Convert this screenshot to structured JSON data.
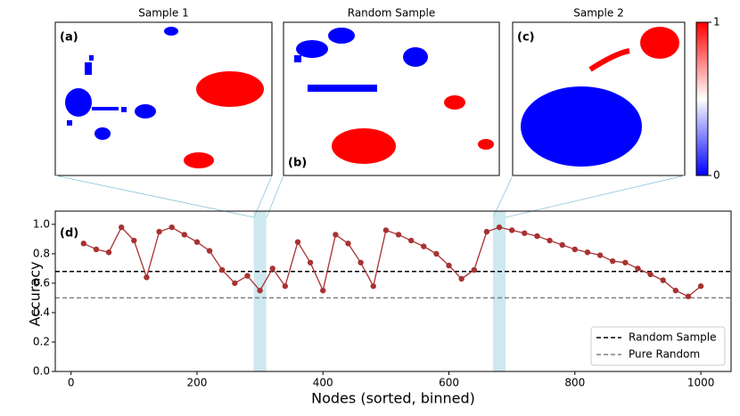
{
  "chart_data": {
    "type": "line",
    "panels": [
      {
        "title": "Sample 1",
        "label": "(a)"
      },
      {
        "title": "Random Sample",
        "label": "(b)"
      },
      {
        "title": "Sample 2",
        "label": "(c)"
      }
    ],
    "colorbar": {
      "ticks": [
        0,
        1
      ]
    },
    "panel_label": "(d)",
    "xlabel": "Nodes (sorted, binned)",
    "ylabel": "Accuracy",
    "x": [
      20,
      40,
      60,
      80,
      100,
      120,
      140,
      160,
      180,
      200,
      220,
      240,
      260,
      280,
      300,
      320,
      340,
      360,
      380,
      400,
      420,
      440,
      460,
      480,
      500,
      520,
      540,
      560,
      580,
      600,
      620,
      640,
      660,
      680,
      700,
      720,
      740,
      760,
      780,
      800,
      820,
      840,
      860,
      880,
      900,
      920,
      940,
      960,
      980,
      1000
    ],
    "values": [
      0.87,
      0.83,
      0.81,
      0.98,
      0.89,
      0.64,
      0.95,
      0.98,
      0.93,
      0.88,
      0.82,
      0.69,
      0.6,
      0.65,
      0.55,
      0.7,
      0.58,
      0.88,
      0.74,
      0.55,
      0.93,
      0.87,
      0.74,
      0.58,
      0.96,
      0.93,
      0.89,
      0.85,
      0.8,
      0.72,
      0.63,
      0.69,
      0.95,
      0.98,
      0.96,
      0.94,
      0.92,
      0.89,
      0.86,
      0.83,
      0.81,
      0.79,
      0.75,
      0.74,
      0.7,
      0.66,
      0.62,
      0.55,
      0.51,
      0.58
    ],
    "color": "#a83232",
    "hlines": [
      {
        "name": "Random Sample",
        "value": 0.68,
        "color": "#000000"
      },
      {
        "name": "Pure Random",
        "value": 0.5,
        "color": "#808080"
      }
    ],
    "spans": [
      [
        290,
        310
      ],
      [
        670,
        690
      ]
    ],
    "span_color": "#add8e6",
    "xlim": [
      -25,
      1048
    ],
    "ylim": [
      0,
      1.09
    ],
    "xticks": [
      0,
      200,
      400,
      600,
      800,
      1000
    ],
    "yticks": [
      {
        "value": 0,
        "label": "0.0"
      },
      {
        "value": 0.2,
        "label": "0.2"
      },
      {
        "value": 0.4,
        "label": "0.4"
      },
      {
        "value": 0.6,
        "label": "0.6"
      },
      {
        "value": 0.8,
        "label": "0.8"
      },
      {
        "value": 1.0,
        "label": "1.0"
      }
    ],
    "legend": "lower right"
  }
}
